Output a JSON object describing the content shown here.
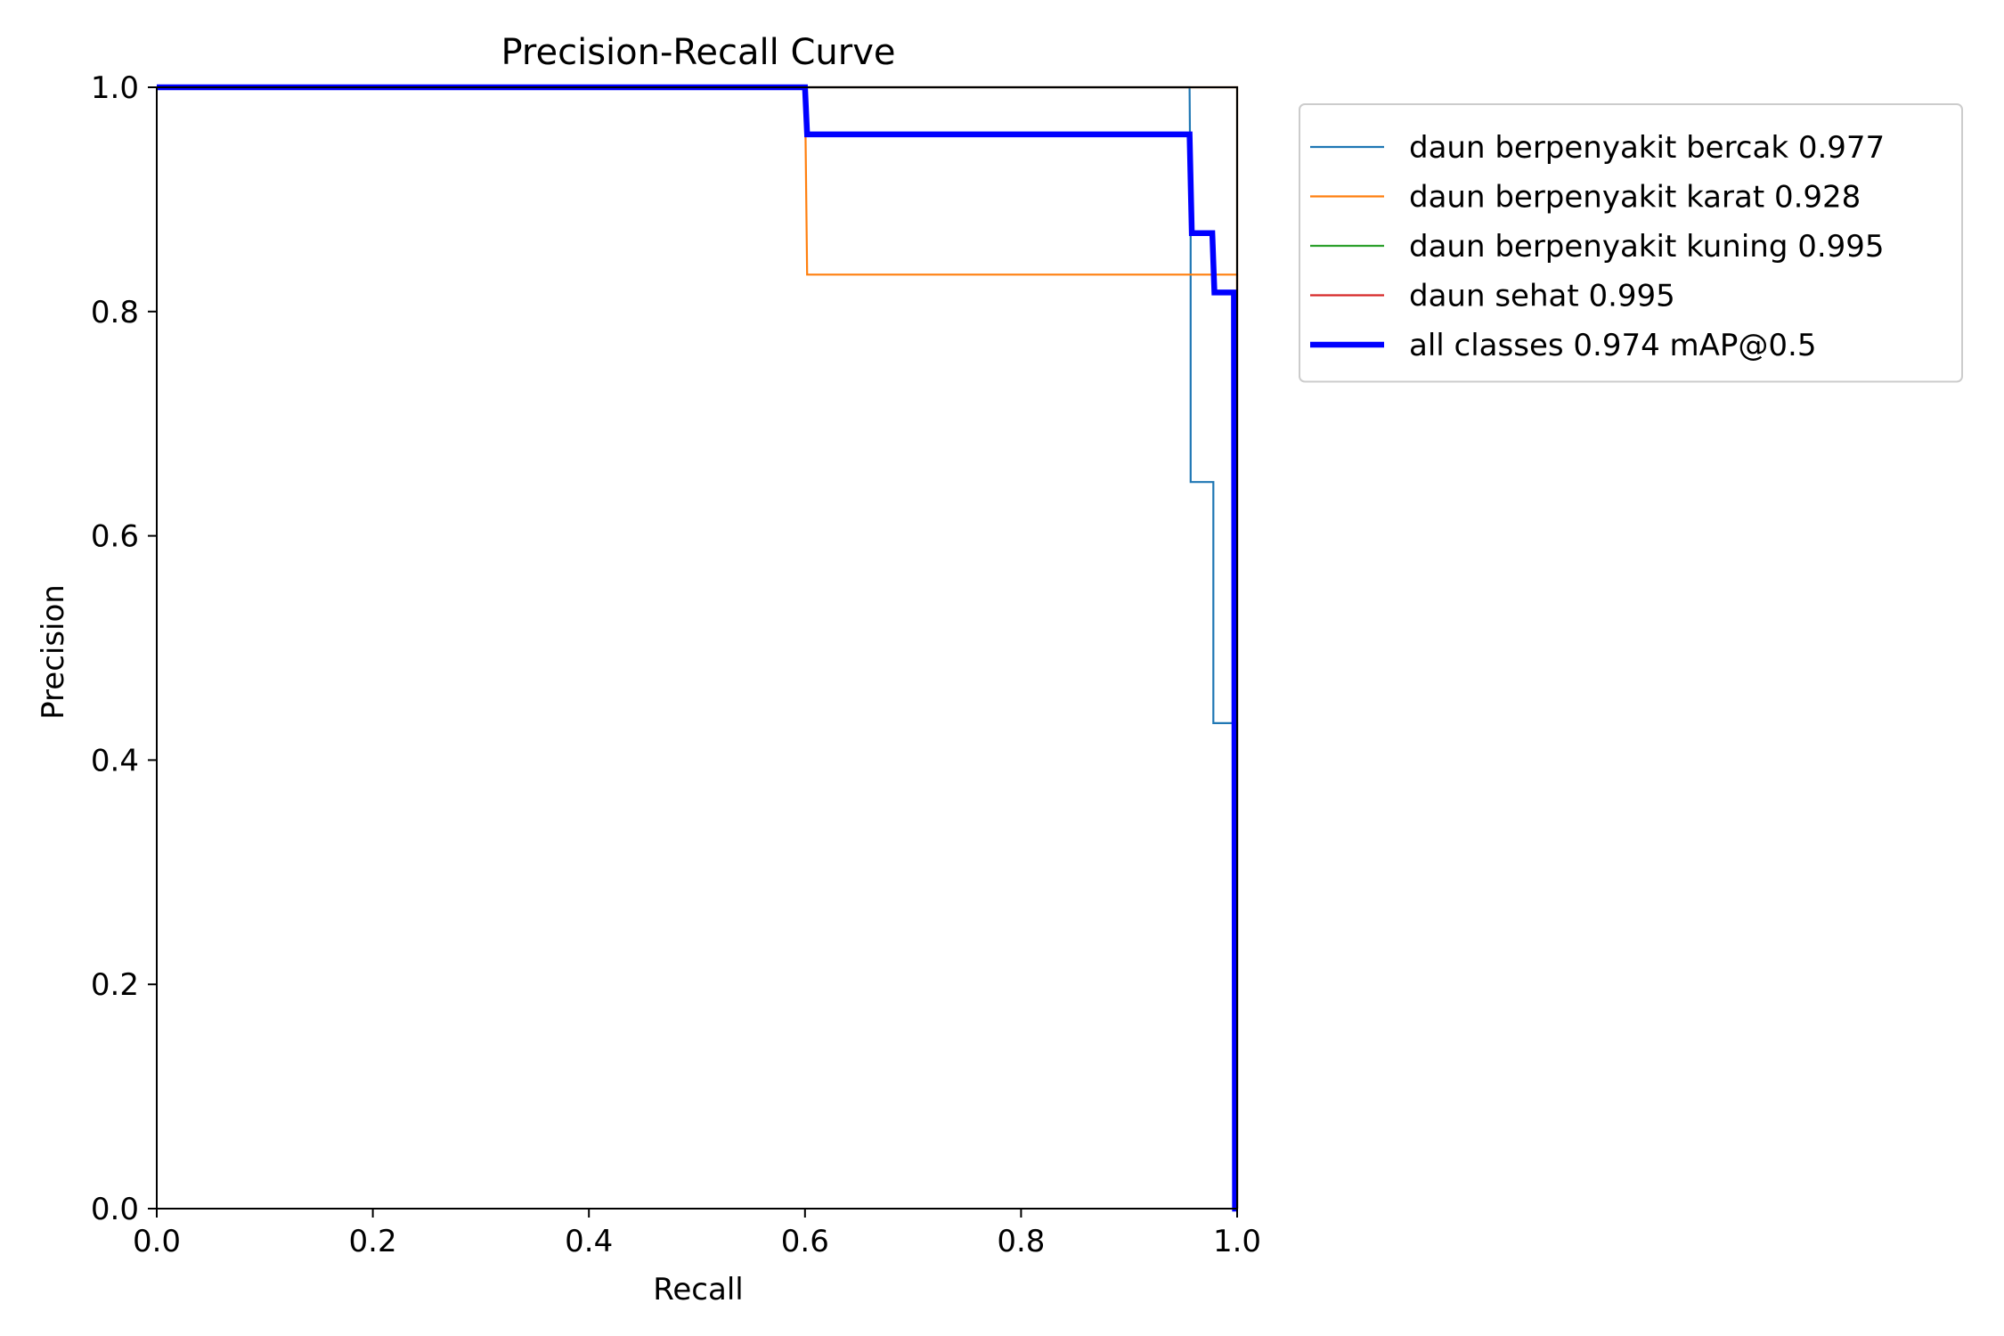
{
  "chart_data": {
    "type": "line",
    "title": "Precision-Recall Curve",
    "xlabel": "Recall",
    "ylabel": "Precision",
    "xlim": [
      0,
      1
    ],
    "ylim": [
      0,
      1
    ],
    "xticks": [
      "0.0",
      "0.2",
      "0.4",
      "0.6",
      "0.8",
      "1.0"
    ],
    "yticks": [
      "0.0",
      "0.2",
      "0.4",
      "0.6",
      "0.8",
      "1.0"
    ],
    "grid": false,
    "legend_position": "outside upper-right",
    "series": [
      {
        "name": "daun berpenyakit bercak 0.977",
        "color": "#1f77b4",
        "width": "thin",
        "x": [
          0,
          0.956,
          0.956,
          0.957,
          0.957,
          0.978,
          0.978,
          0.998,
          0.998,
          1.0,
          1.0
        ],
        "y": [
          1.0,
          1.0,
          1.0,
          0.87,
          0.648,
          0.648,
          0.433,
          0.433,
          0.433,
          0.433,
          0.0
        ]
      },
      {
        "name": "daun berpenyakit karat 0.928",
        "color": "#ff7f0e",
        "width": "thin",
        "x": [
          0,
          0.6,
          0.6,
          0.602,
          0.602,
          1.0,
          1.0
        ],
        "y": [
          1.0,
          1.0,
          1.0,
          0.833,
          0.833,
          0.833,
          0.0
        ]
      },
      {
        "name": "daun berpenyakit kuning 0.995",
        "color": "#2ca02c",
        "width": "thin",
        "x": [
          0,
          1.0,
          1.0
        ],
        "y": [
          1.0,
          1.0,
          0.0
        ]
      },
      {
        "name": "daun sehat 0.995",
        "color": "#d62728",
        "width": "thin",
        "x": [
          0,
          1.0,
          1.0
        ],
        "y": [
          1.0,
          1.0,
          0.0
        ]
      },
      {
        "name": "all classes 0.974 mAP@0.5",
        "color": "#0000ff",
        "width": "thick",
        "x": [
          0,
          0.6,
          0.602,
          0.956,
          0.958,
          0.977,
          0.979,
          0.997,
          0.998,
          1.0
        ],
        "y": [
          1.0,
          1.0,
          0.958,
          0.958,
          0.87,
          0.87,
          0.817,
          0.817,
          0.0,
          0.0
        ]
      }
    ]
  }
}
